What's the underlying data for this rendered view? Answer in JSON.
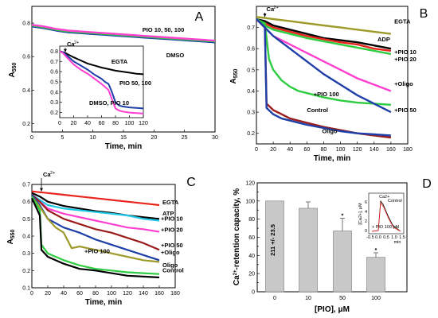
{
  "colors": {
    "black": "#000000",
    "red": "#e8241c",
    "olive": "#9e9a2a",
    "pink": "#ff3fd0",
    "green": "#2ecc40",
    "blue": "#1e3fa8",
    "darkred": "#9b1c1c",
    "cyan": "#22c8e8",
    "bar": "#c8c8c8"
  },
  "chart_data": [
    {
      "panel": "A",
      "type": "line",
      "xlabel": "Time, min",
      "ylabel": "A550",
      "xlim": [
        0,
        30
      ],
      "xticks": [
        0,
        5,
        10,
        15,
        20,
        25,
        30
      ],
      "ylim": [
        0.15,
        0.9
      ],
      "yticks": [
        0.2,
        0.4,
        0.6,
        0.8
      ],
      "labels": [
        "PIO 10, 50, 100",
        "DMSO"
      ],
      "series": [
        {
          "color": "blue",
          "x": [
            0,
            2,
            4,
            6,
            8,
            10,
            12,
            14,
            16,
            18,
            20,
            22,
            24,
            26,
            28,
            30
          ],
          "y": [
            0.78,
            0.77,
            0.755,
            0.745,
            0.74,
            0.735,
            0.73,
            0.725,
            0.72,
            0.715,
            0.71,
            0.705,
            0.7,
            0.695,
            0.69,
            0.685
          ]
        },
        {
          "color": "green",
          "x": [
            0,
            2,
            4,
            6,
            8,
            10,
            12,
            14,
            16,
            18,
            20,
            22,
            24,
            26,
            28,
            30
          ],
          "y": [
            0.785,
            0.775,
            0.76,
            0.75,
            0.745,
            0.74,
            0.735,
            0.73,
            0.725,
            0.72,
            0.715,
            0.71,
            0.705,
            0.7,
            0.695,
            0.69
          ]
        },
        {
          "color": "pink",
          "x": [
            0,
            2,
            4,
            6,
            8,
            10,
            12,
            14,
            16,
            18,
            20,
            22,
            24,
            26,
            28,
            30
          ],
          "y": [
            0.79,
            0.78,
            0.765,
            0.755,
            0.75,
            0.745,
            0.74,
            0.735,
            0.73,
            0.725,
            0.72,
            0.715,
            0.71,
            0.705,
            0.7,
            0.695
          ]
        }
      ],
      "inset": {
        "xlim": [
          0,
          120
        ],
        "xticks": [
          0,
          20,
          40,
          60,
          80,
          100,
          120
        ],
        "ylim": [
          0.15,
          0.85
        ],
        "yticks": [
          0.2,
          0.3,
          0.4,
          0.5,
          0.6,
          0.7,
          0.8
        ],
        "marker": "Ca2+",
        "labels": [
          "EGTA",
          "PIO 50, 100",
          "DMSO, PIO 10"
        ],
        "series": [
          {
            "color": "black",
            "x": [
              0,
              5,
              10,
              20,
              30,
              40,
              50,
              60,
              70,
              80,
              90,
              100,
              110,
              120
            ],
            "y": [
              0.8,
              0.79,
              0.775,
              0.74,
              0.71,
              0.68,
              0.66,
              0.64,
              0.625,
              0.61,
              0.6,
              0.59,
              0.58,
              0.575
            ]
          },
          {
            "color": "blue",
            "x": [
              0,
              5,
              10,
              20,
              30,
              40,
              50,
              60,
              65,
              70,
              75,
              80,
              85,
              90,
              100,
              110,
              120
            ],
            "y": [
              0.8,
              0.79,
              0.76,
              0.7,
              0.66,
              0.62,
              0.57,
              0.53,
              0.5,
              0.48,
              0.4,
              0.3,
              0.27,
              0.26,
              0.25,
              0.245,
              0.24
            ]
          },
          {
            "color": "pink",
            "x": [
              0,
              5,
              10,
              20,
              30,
              40,
              50,
              60,
              65,
              70,
              75,
              80,
              85,
              90,
              100,
              110,
              120
            ],
            "y": [
              0.8,
              0.78,
              0.74,
              0.67,
              0.62,
              0.58,
              0.53,
              0.48,
              0.45,
              0.42,
              0.33,
              0.24,
              0.22,
              0.21,
              0.2,
              0.195,
              0.19
            ]
          }
        ]
      }
    },
    {
      "panel": "B",
      "type": "line",
      "xlabel": "Time, min",
      "ylabel": "A550",
      "xlim": [
        0,
        180
      ],
      "xticks": [
        0,
        20,
        40,
        60,
        80,
        100,
        120,
        140,
        160,
        180
      ],
      "ylim": [
        0.15,
        0.8
      ],
      "yticks": [
        0.2,
        0.3,
        0.4,
        0.5,
        0.6,
        0.7
      ],
      "marker": "Ca2+",
      "series": [
        {
          "name": "EGTA",
          "color": "olive",
          "x": [
            0,
            10,
            20,
            40,
            60,
            80,
            100,
            120,
            140,
            160
          ],
          "y": [
            0.75,
            0.745,
            0.74,
            0.73,
            0.72,
            0.71,
            0.7,
            0.69,
            0.68,
            0.67
          ]
        },
        {
          "name": "ADP",
          "color": "black",
          "x": [
            0,
            10,
            20,
            40,
            60,
            80,
            100,
            120,
            140,
            160
          ],
          "y": [
            0.74,
            0.73,
            0.71,
            0.69,
            0.67,
            0.65,
            0.64,
            0.63,
            0.615,
            0.6
          ]
        },
        {
          "name": "+PIO 10",
          "color": "red",
          "x": [
            0,
            10,
            20,
            40,
            60,
            80,
            100,
            120,
            140,
            160
          ],
          "y": [
            0.74,
            0.72,
            0.7,
            0.68,
            0.66,
            0.645,
            0.63,
            0.62,
            0.6,
            0.59
          ]
        },
        {
          "name": "+PIO 20",
          "color": "green",
          "x": [
            0,
            10,
            20,
            40,
            60,
            80,
            100,
            120,
            140,
            160
          ],
          "y": [
            0.74,
            0.71,
            0.69,
            0.67,
            0.65,
            0.635,
            0.62,
            0.605,
            0.59,
            0.575
          ]
        },
        {
          "name": "+Oligo",
          "color": "pink",
          "x": [
            0,
            10,
            20,
            40,
            60,
            80,
            100,
            120,
            140,
            160
          ],
          "y": [
            0.74,
            0.7,
            0.66,
            0.62,
            0.58,
            0.54,
            0.5,
            0.46,
            0.43,
            0.4
          ]
        },
        {
          "name": "+PIO 100",
          "color": "green",
          "x": [
            0,
            10,
            15,
            20,
            30,
            40,
            50,
            60,
            80,
            100,
            120,
            140,
            160
          ],
          "y": [
            0.74,
            0.72,
            0.55,
            0.5,
            0.45,
            0.42,
            0.4,
            0.39,
            0.37,
            0.355,
            0.345,
            0.34,
            0.335
          ]
        },
        {
          "name": "+PIO 50",
          "color": "blue",
          "x": [
            0,
            10,
            20,
            40,
            60,
            80,
            100,
            120,
            140,
            160
          ],
          "y": [
            0.74,
            0.7,
            0.66,
            0.6,
            0.54,
            0.48,
            0.43,
            0.38,
            0.34,
            0.3
          ]
        },
        {
          "name": "Control",
          "color": "darkred",
          "x": [
            0,
            10,
            12,
            20,
            30,
            40,
            60,
            80,
            100,
            120,
            140,
            160
          ],
          "y": [
            0.74,
            0.7,
            0.34,
            0.31,
            0.29,
            0.27,
            0.25,
            0.23,
            0.215,
            0.2,
            0.19,
            0.18
          ]
        },
        {
          "name": "Oligo",
          "color": "blue",
          "x": [
            0,
            10,
            12,
            20,
            30,
            40,
            60,
            80,
            100,
            120,
            140,
            160
          ],
          "y": [
            0.74,
            0.7,
            0.32,
            0.29,
            0.27,
            0.26,
            0.24,
            0.225,
            0.21,
            0.2,
            0.195,
            0.19
          ]
        }
      ],
      "labels": [
        {
          "text": "EGTA",
          "x": 164,
          "y": 0.72,
          "anchor": "start"
        },
        {
          "text": "ADP",
          "x": 144,
          "y": 0.635,
          "anchor": "start"
        },
        {
          "text": "+PIO 10",
          "x": 164,
          "y": 0.575,
          "anchor": "start"
        },
        {
          "text": "+PIO 20",
          "x": 164,
          "y": 0.54,
          "anchor": "start"
        },
        {
          "text": "+PIO 100",
          "x": 68,
          "y": 0.375,
          "anchor": "start"
        },
        {
          "text": "+Oligo",
          "x": 164,
          "y": 0.425,
          "anchor": "start"
        },
        {
          "text": "Control",
          "x": 60,
          "y": 0.3,
          "anchor": "start"
        },
        {
          "text": "+PIO 50",
          "x": 164,
          "y": 0.3,
          "anchor": "start"
        },
        {
          "text": "Oligo",
          "x": 78,
          "y": 0.2,
          "anchor": "start"
        }
      ]
    },
    {
      "panel": "C",
      "type": "line",
      "xlabel": "Time, min",
      "ylabel": "A550",
      "xlim": [
        0,
        180
      ],
      "xticks": [
        0,
        20,
        40,
        60,
        80,
        100,
        120,
        140,
        160,
        180
      ],
      "ylim": [
        0.1,
        0.7
      ],
      "yticks": [
        0.1,
        0.2,
        0.3,
        0.4,
        0.5,
        0.6,
        0.7
      ],
      "marker": "Ca2+",
      "series": [
        {
          "name": "EGTA",
          "color": "red",
          "x": [
            0,
            10,
            20,
            40,
            60,
            80,
            100,
            120,
            140,
            160
          ],
          "y": [
            0.66,
            0.655,
            0.65,
            0.64,
            0.63,
            0.62,
            0.61,
            0.6,
            0.59,
            0.58
          ]
        },
        {
          "name": "ATP",
          "color": "black",
          "x": [
            0,
            10,
            20,
            40,
            60,
            80,
            100,
            120,
            140,
            160
          ],
          "y": [
            0.65,
            0.63,
            0.6,
            0.575,
            0.56,
            0.545,
            0.535,
            0.52,
            0.51,
            0.5
          ]
        },
        {
          "name": "+PIO 10",
          "color": "cyan",
          "x": [
            0,
            10,
            20,
            40,
            60,
            80,
            100,
            120,
            140,
            160
          ],
          "y": [
            0.64,
            0.61,
            0.58,
            0.56,
            0.55,
            0.54,
            0.53,
            0.52,
            0.5,
            0.49
          ]
        },
        {
          "name": "+PIO 20",
          "color": "pink",
          "x": [
            0,
            10,
            20,
            40,
            60,
            80,
            100,
            120,
            140,
            160
          ],
          "y": [
            0.64,
            0.6,
            0.56,
            0.53,
            0.51,
            0.49,
            0.47,
            0.45,
            0.44,
            0.425
          ]
        },
        {
          "name": "+PIO 50",
          "color": "darkred",
          "x": [
            0,
            10,
            20,
            40,
            60,
            80,
            100,
            120,
            140,
            160
          ],
          "y": [
            0.64,
            0.6,
            0.55,
            0.5,
            0.47,
            0.44,
            0.42,
            0.39,
            0.36,
            0.32
          ]
        },
        {
          "name": "+PIO 100",
          "color": "blue",
          "x": [
            0,
            10,
            20,
            40,
            60,
            80,
            100,
            120,
            140,
            160
          ],
          "y": [
            0.64,
            0.58,
            0.5,
            0.45,
            0.42,
            0.38,
            0.35,
            0.32,
            0.29,
            0.26
          ]
        },
        {
          "name": "+Oligo",
          "color": "olive",
          "x": [
            0,
            10,
            20,
            30,
            40,
            50,
            60,
            70,
            80,
            100,
            120,
            140,
            160
          ],
          "y": [
            0.63,
            0.57,
            0.5,
            0.45,
            0.42,
            0.33,
            0.34,
            0.33,
            0.32,
            0.3,
            0.28,
            0.26,
            0.25
          ]
        },
        {
          "name": "Oligo",
          "color": "green",
          "x": [
            0,
            10,
            12,
            20,
            40,
            60,
            80,
            100,
            120,
            140,
            160
          ],
          "y": [
            0.63,
            0.55,
            0.35,
            0.3,
            0.26,
            0.23,
            0.21,
            0.2,
            0.19,
            0.185,
            0.18
          ]
        },
        {
          "name": "Control",
          "color": "black",
          "x": [
            0,
            10,
            12,
            20,
            40,
            60,
            80,
            100,
            120,
            140,
            160
          ],
          "y": [
            0.62,
            0.52,
            0.32,
            0.28,
            0.24,
            0.21,
            0.2,
            0.185,
            0.17,
            0.165,
            0.16
          ]
        }
      ],
      "labels": [
        {
          "text": "EGTA",
          "x": 164,
          "y": 0.585,
          "anchor": "start"
        },
        {
          "text": "ATP",
          "x": 164,
          "y": 0.52,
          "anchor": "start"
        },
        {
          "text": "+PIO 10",
          "x": 162,
          "y": 0.49,
          "anchor": "start"
        },
        {
          "text": "+PIO 20",
          "x": 162,
          "y": 0.425,
          "anchor": "start"
        },
        {
          "text": "+PIO 100",
          "x": 66,
          "y": 0.3,
          "anchor": "start"
        },
        {
          "text": "+PIO 50",
          "x": 162,
          "y": 0.335,
          "anchor": "start"
        },
        {
          "text": "+Oligo",
          "x": 162,
          "y": 0.295,
          "anchor": "start"
        },
        {
          "text": "Oligo",
          "x": 164,
          "y": 0.22,
          "anchor": "start"
        },
        {
          "text": "Control",
          "x": 164,
          "y": 0.19,
          "anchor": "start"
        }
      ]
    },
    {
      "panel": "D",
      "type": "bar",
      "xlabel": "[PIO], μM",
      "ylabel": "Ca2+-retention capacity, %",
      "categories": [
        "0",
        "10",
        "50",
        "100"
      ],
      "values": [
        100,
        92,
        67,
        38
      ],
      "errors": [
        0,
        7,
        14,
        5
      ],
      "significant": [
        false,
        false,
        true,
        true
      ],
      "annotation": "211 +/- 23.5",
      "ylim": [
        0,
        120
      ],
      "yticks": [
        0,
        10,
        20,
        30,
        40,
        50,
        60,
        70,
        80,
        90,
        100,
        110,
        120
      ],
      "inset": {
        "ylabel": "[Ca2+], μM",
        "xlabel": "min",
        "xticks": [
          "-0.5",
          "0.0",
          "0.5",
          "1.0",
          "1.5"
        ],
        "yticks": [
          "0",
          "2",
          "4",
          "6"
        ],
        "labels": [
          "Control",
          "Ca2+",
          "+ PIO 100 μM"
        ]
      }
    }
  ]
}
